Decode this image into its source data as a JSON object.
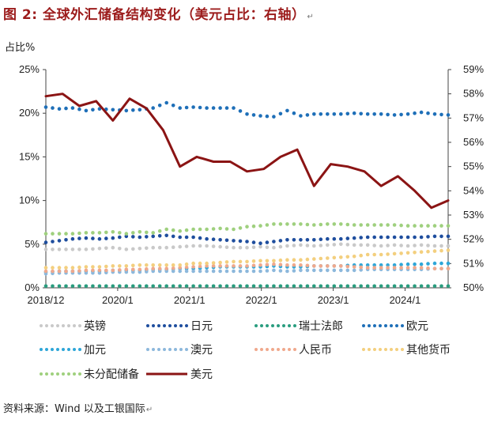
{
  "figure": {
    "title": "图 2: 全球外汇储备结构变化（美元占比：右轴）",
    "left_axis_unit": "占比%",
    "source": "资料来源：Wind 以及工银国际"
  },
  "chart_data": {
    "type": "line",
    "title": "全球外汇储备结构变化（美元占比：右轴）",
    "ylabel": "占比%",
    "left_axis": {
      "ylim": [
        0,
        25
      ],
      "ticks": [
        "0%",
        "5%",
        "10%",
        "15%",
        "20%",
        "25%"
      ]
    },
    "right_axis": {
      "ylim": [
        50,
        59
      ],
      "ticks": [
        "50%",
        "51%",
        "52%",
        "53%",
        "54%",
        "55%",
        "56%",
        "57%",
        "58%",
        "59%"
      ]
    },
    "x_tick_labels": [
      "2018/12",
      "2020/1",
      "2021/1",
      "2022/1",
      "2023/1",
      "2024/1"
    ],
    "grid": false,
    "legend_position": "bottom",
    "series": [
      {
        "name": "英镑",
        "axis": "left",
        "style": "dotted",
        "color": "#c9c9c9",
        "values": [
          4.4,
          4.4,
          4.4,
          4.4,
          4.5,
          4.6,
          4.4,
          4.5,
          4.6,
          4.6,
          4.7,
          4.8,
          4.8,
          4.7,
          4.6,
          4.6,
          4.7,
          4.6,
          4.8,
          4.9,
          4.8,
          4.9,
          5.0,
          4.9,
          4.9,
          4.8,
          4.9,
          4.8,
          4.9,
          4.8,
          4.8
        ]
      },
      {
        "name": "日元",
        "axis": "left",
        "style": "dotted",
        "color": "#1f4e9e",
        "values": [
          5.2,
          5.4,
          5.6,
          5.7,
          5.6,
          5.7,
          5.9,
          5.8,
          5.9,
          6.0,
          5.8,
          5.8,
          5.6,
          5.5,
          5.4,
          5.3,
          5.1,
          5.3,
          5.5,
          5.5,
          5.5,
          5.6,
          5.6,
          5.7,
          5.8,
          5.8,
          5.8,
          5.8,
          5.8,
          5.9,
          5.9
        ]
      },
      {
        "name": "瑞士法郎",
        "axis": "left",
        "style": "dotted",
        "color": "#2a9d7f",
        "values": [
          0.2,
          0.2,
          0.2,
          0.2,
          0.2,
          0.2,
          0.2,
          0.2,
          0.2,
          0.2,
          0.2,
          0.2,
          0.2,
          0.2,
          0.2,
          0.2,
          0.2,
          0.2,
          0.2,
          0.2,
          0.2,
          0.2,
          0.2,
          0.2,
          0.2,
          0.2,
          0.2,
          0.2,
          0.2,
          0.2,
          0.2
        ]
      },
      {
        "name": "欧元",
        "axis": "left",
        "style": "dotted",
        "color": "#1e6fb8",
        "values": [
          20.7,
          20.5,
          20.6,
          20.3,
          20.5,
          20.4,
          20.3,
          20.4,
          20.6,
          21.2,
          20.6,
          20.7,
          20.6,
          20.6,
          20.6,
          19.9,
          19.7,
          19.6,
          20.3,
          19.7,
          19.9,
          19.9,
          19.9,
          20.0,
          19.9,
          19.9,
          19.8,
          19.9,
          20.1,
          19.9,
          19.8
        ]
      },
      {
        "name": "加元",
        "axis": "left",
        "style": "dotted",
        "color": "#2ea6d8",
        "values": [
          1.8,
          1.9,
          1.9,
          1.9,
          1.9,
          2.0,
          2.0,
          2.0,
          2.1,
          2.1,
          2.2,
          2.2,
          2.3,
          2.4,
          2.4,
          2.4,
          2.4,
          2.5,
          2.4,
          2.4,
          2.5,
          2.5,
          2.5,
          2.6,
          2.6,
          2.6,
          2.6,
          2.7,
          2.7,
          2.8,
          2.8
        ]
      },
      {
        "name": "澳元",
        "axis": "left",
        "style": "dotted",
        "color": "#8cb8dc",
        "values": [
          1.6,
          1.7,
          1.7,
          1.7,
          1.7,
          1.8,
          1.8,
          1.8,
          1.9,
          1.9,
          1.9,
          1.9,
          1.9,
          1.9,
          1.9,
          1.9,
          1.9,
          2.0,
          1.9,
          2.0,
          2.0,
          2.0,
          2.0,
          2.0,
          2.1,
          2.1,
          2.1,
          2.1,
          2.1,
          2.2,
          2.2
        ]
      },
      {
        "name": "人民币",
        "axis": "left",
        "style": "dotted",
        "color": "#f0a88c",
        "values": [
          1.9,
          1.9,
          1.9,
          2.0,
          2.0,
          2.0,
          2.1,
          2.1,
          2.2,
          2.2,
          2.3,
          2.4,
          2.5,
          2.5,
          2.5,
          2.5,
          2.6,
          2.7,
          2.6,
          2.6,
          2.5,
          2.5,
          2.5,
          2.4,
          2.3,
          2.3,
          2.3,
          2.3,
          2.3,
          2.2,
          2.2
        ]
      },
      {
        "name": "其他货币",
        "axis": "left",
        "style": "dotted",
        "color": "#f3cf7e",
        "values": [
          2.3,
          2.3,
          2.3,
          2.4,
          2.4,
          2.5,
          2.5,
          2.6,
          2.6,
          2.6,
          2.6,
          2.8,
          2.8,
          2.9,
          3.0,
          3.0,
          3.1,
          3.1,
          3.2,
          3.2,
          3.3,
          3.4,
          3.5,
          3.6,
          3.8,
          3.8,
          3.9,
          4.0,
          4.1,
          4.2,
          4.3
        ]
      },
      {
        "name": "未分配储备",
        "axis": "left",
        "style": "dotted",
        "color": "#9fd07e",
        "values": [
          6.2,
          6.2,
          6.2,
          6.3,
          6.3,
          6.4,
          6.2,
          6.4,
          6.3,
          6.7,
          6.5,
          6.7,
          6.7,
          6.8,
          6.7,
          7.0,
          7.1,
          7.3,
          7.3,
          7.3,
          7.2,
          7.3,
          7.3,
          7.2,
          7.2,
          7.2,
          7.2,
          7.1,
          7.1,
          7.1,
          7.1
        ]
      },
      {
        "name": "美元",
        "axis": "right",
        "style": "solid",
        "color": "#8b1414",
        "values": [
          57.9,
          58.0,
          57.5,
          57.7,
          56.9,
          57.8,
          57.4,
          56.5,
          55.0,
          55.4,
          55.2,
          55.2,
          54.8,
          54.9,
          55.4,
          55.7,
          54.2,
          55.1,
          55.0,
          54.8,
          54.2,
          54.6,
          54.0,
          53.3,
          53.6
        ]
      }
    ]
  }
}
